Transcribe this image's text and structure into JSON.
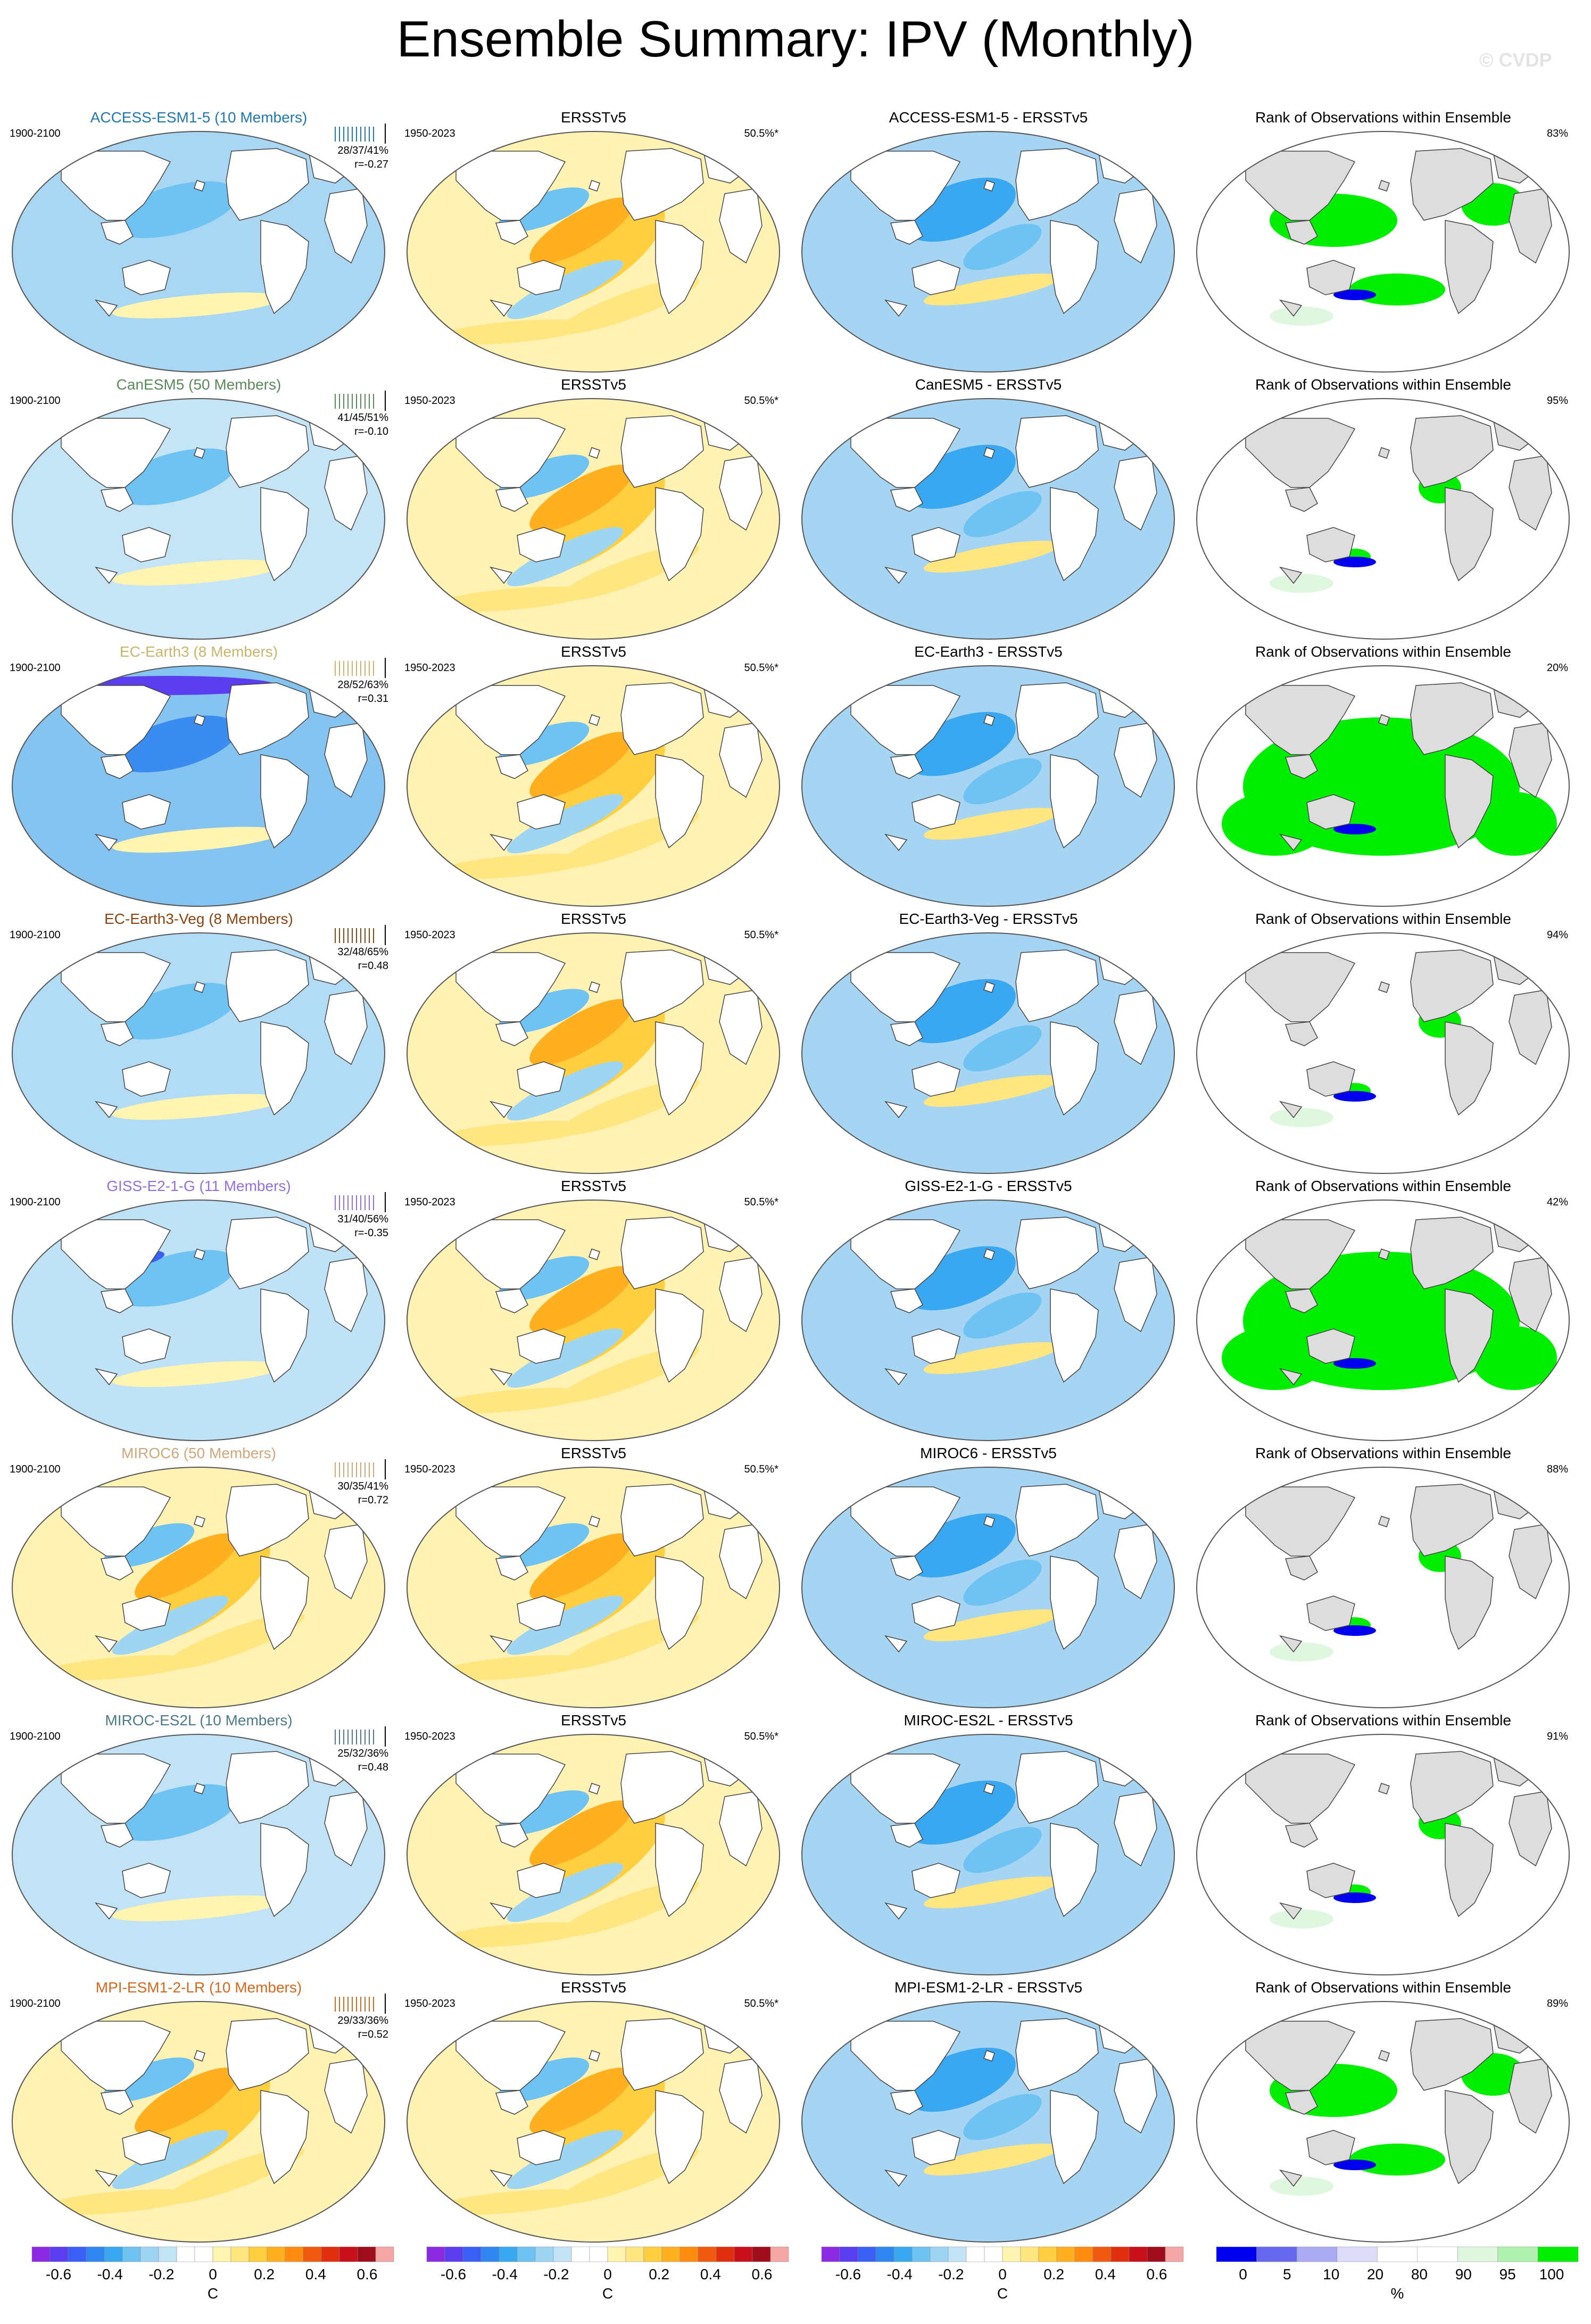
{
  "title": "Ensemble Summary: IPV (Monthly)",
  "watermark": "© CVDP",
  "column_titles": {
    "obs": "ERSSTv5",
    "rank": "Rank of Observations within Ensemble"
  },
  "obs_period": "1950-2023",
  "obs_pct": "50.5%*",
  "model_period": "1900-2100",
  "models": [
    {
      "label": "ACCESS-ESM1-5 (10 Members)",
      "diff": "ACCESS-ESM1-5 - ERSSTv5",
      "color": "#1f77b4",
      "stats": "28/37/41%",
      "r": "r=-0.27",
      "rank_pct": "83%",
      "pattern": "cool_uniform",
      "rank_pattern": "moderate"
    },
    {
      "label": "CanESM5 (50 Members)",
      "diff": "CanESM5 - ERSSTv5",
      "color": "#5a8a5a",
      "stats": "41/45/51%",
      "r": "r=-0.10",
      "rank_pct": "95%",
      "pattern": "cool_weak",
      "rank_pattern": "sparse"
    },
    {
      "label": "EC-Earth3 (8 Members)",
      "diff": "EC-Earth3 - ERSSTv5",
      "color": "#c9b46a",
      "stats": "28/52/63%",
      "r": "r=0.31",
      "rank_pct": "20%",
      "pattern": "cool_strong",
      "rank_pattern": "dense"
    },
    {
      "label": "EC-Earth3-Veg (8 Members)",
      "diff": "EC-Earth3-Veg - ERSSTv5",
      "color": "#8b4513",
      "stats": "32/48/65%",
      "r": "r=0.48",
      "rank_pct": "94%",
      "pattern": "cool_medium",
      "rank_pattern": "sparse"
    },
    {
      "label": "GISS-E2-1-G (11 Members)",
      "diff": "GISS-E2-1-G - ERSSTv5",
      "color": "#9370db",
      "stats": "31/40/56%",
      "r": "r=-0.35",
      "rank_pct": "42%",
      "pattern": "cool_kuroshio",
      "rank_pattern": "dense"
    },
    {
      "label": "MIROC6 (50 Members)",
      "diff": "MIROC6 - ERSSTv5",
      "color": "#d2a679",
      "stats": "30/35/41%",
      "r": "r=0.72",
      "rank_pct": "88%",
      "pattern": "ipv_like",
      "rank_pattern": "sparse"
    },
    {
      "label": "MIROC-ES2L (10 Members)",
      "diff": "MIROC-ES2L - ERSSTv5",
      "color": "#4a7a8c",
      "stats": "25/32/36%",
      "r": "r=0.48",
      "rank_pct": "91%",
      "pattern": "cool_band",
      "rank_pattern": "sparse"
    },
    {
      "label": "MPI-ESM1-2-LR (10 Members)",
      "diff": "MPI-ESM1-2-LR - ERSSTv5",
      "color": "#d2691e",
      "stats": "29/33/36%",
      "r": "r=0.52",
      "rank_pct": "89%",
      "pattern": "ipv_like",
      "rank_pattern": "moderate"
    }
  ],
  "colorbar_sst": {
    "ticks": [
      "-0.6",
      "-0.4",
      "-0.2",
      "0",
      "0.2",
      "0.4",
      "0.6"
    ],
    "unit": "C",
    "colors": [
      "#8a2be2",
      "#5b3df0",
      "#3a5ff5",
      "#2f86f0",
      "#3aa8f0",
      "#6fc3f3",
      "#9dd5f3",
      "#c2e4f5",
      "#ffffff",
      "#ffffff",
      "#fff4b0",
      "#ffe680",
      "#ffcf40",
      "#ffb020",
      "#ff8c10",
      "#f05a10",
      "#e03010",
      "#c8101a",
      "#a00d1a",
      "#f4a6a6"
    ]
  },
  "colorbar_rank": {
    "ticks": [
      "0",
      "5",
      "10",
      "20",
      "80",
      "90",
      "95",
      "100"
    ],
    "unit": "%",
    "colors": [
      "#0000ee",
      "#6666ee",
      "#aaaaf2",
      "#dcdcf8",
      "#ffffff",
      "#ffffff",
      "#dff7df",
      "#b0f0b0",
      "#00ee00"
    ]
  }
}
